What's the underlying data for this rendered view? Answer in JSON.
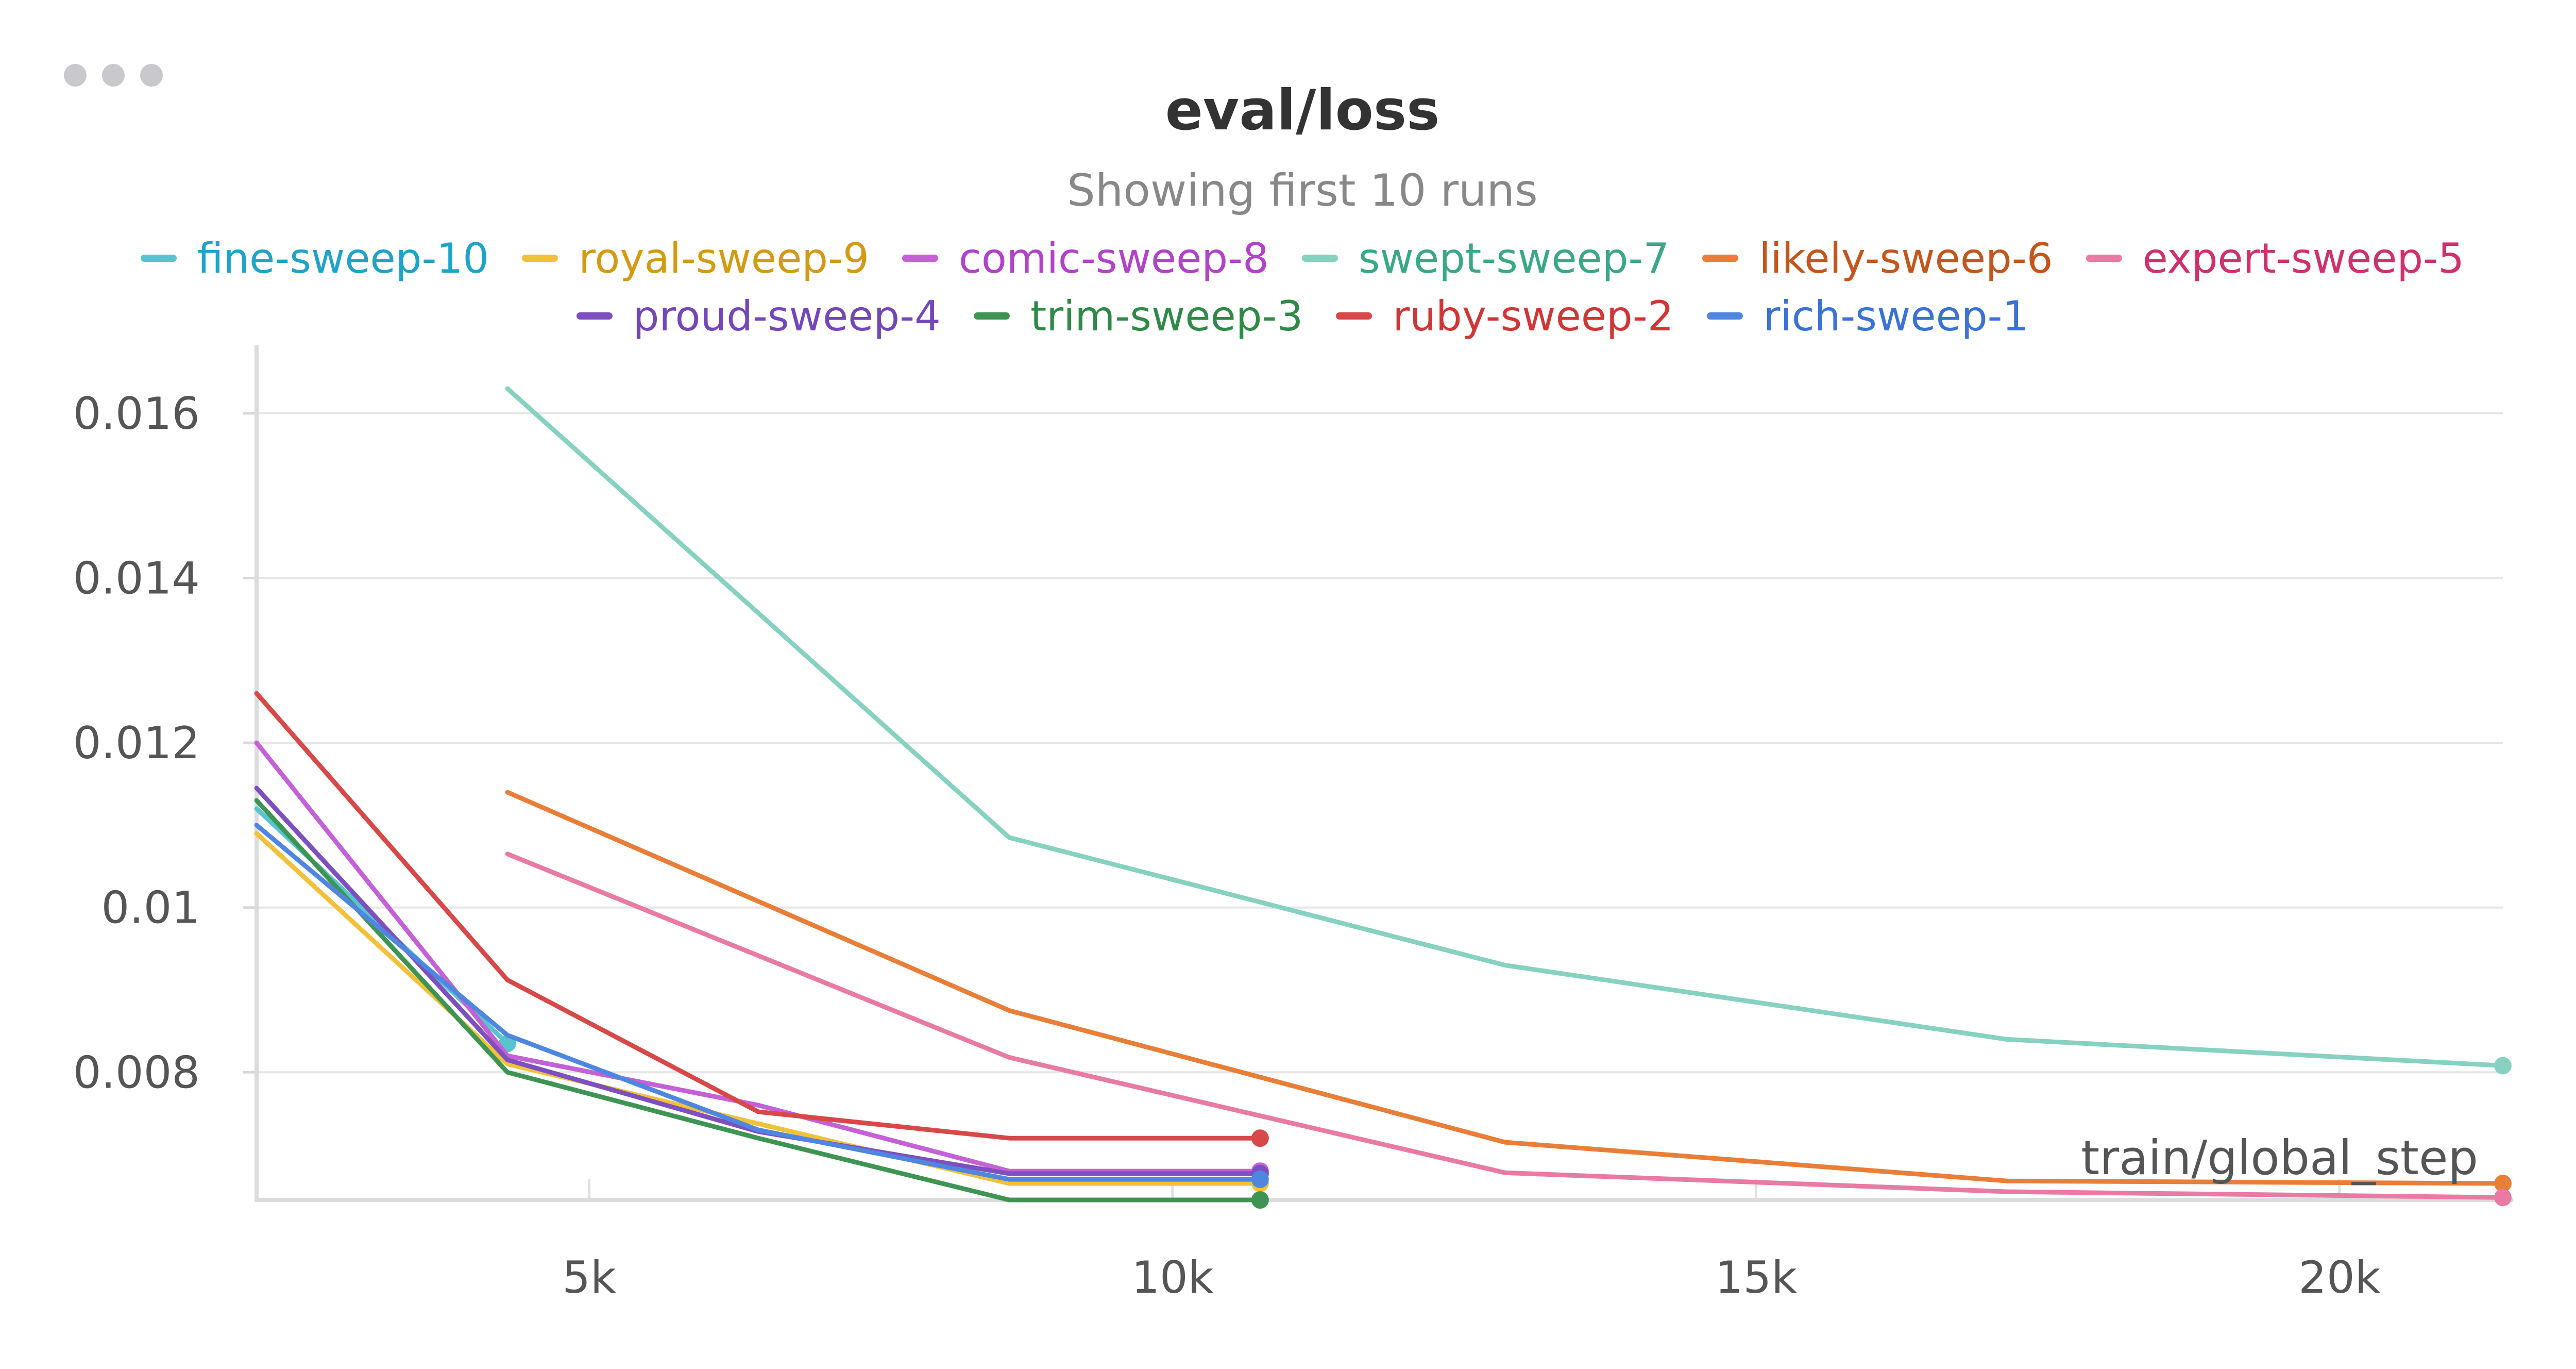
{
  "header": {
    "title": "eval/loss",
    "subtitle": "Showing first 10 runs"
  },
  "chart_data": {
    "type": "line",
    "title": "eval/loss",
    "subtitle": "Showing first 10 runs",
    "xlabel": "train/global_step",
    "ylabel": "",
    "xlim": [
      2150,
      21400
    ],
    "ylim": [
      0.00645,
      0.01645
    ],
    "x_ticks": [
      5000,
      10000,
      15000,
      20000
    ],
    "x_tick_labels": [
      "5k",
      "10k",
      "15k",
      "20k"
    ],
    "y_ticks": [
      0.008,
      0.01,
      0.012,
      0.014,
      0.016
    ],
    "y_tick_labels": [
      "0.008",
      "0.01",
      "0.012",
      "0.014",
      "0.016"
    ],
    "grid": true,
    "legend_position": "top",
    "series": [
      {
        "name": "fine-sweep-10",
        "color": "#56c5d0",
        "text_color": "#1ea3c9",
        "x": [
          2150,
          4300
        ],
        "y": [
          0.0112,
          0.00835
        ]
      },
      {
        "name": "royal-sweep-9",
        "color": "#f2c13a",
        "text_color": "#d39a12",
        "x": [
          2150,
          4300,
          8600,
          10750
        ],
        "y": [
          0.0109,
          0.0081,
          0.00665,
          0.00665
        ]
      },
      {
        "name": "comic-sweep-8",
        "color": "#c461d6",
        "text_color": "#b142c9",
        "x": [
          2150,
          4300,
          6450,
          8600,
          10750
        ],
        "y": [
          0.012,
          0.0082,
          0.0076,
          0.0068,
          0.0068
        ]
      },
      {
        "name": "swept-sweep-7",
        "color": "#86d1bf",
        "text_color": "#3aa888",
        "x": [
          4300,
          8600,
          12850,
          17150,
          21400
        ],
        "y": [
          0.0163,
          0.01085,
          0.0093,
          0.0084,
          0.00808
        ]
      },
      {
        "name": "likely-sweep-6",
        "color": "#e87e37",
        "text_color": "#c4561c",
        "x": [
          4300,
          8600,
          12850,
          17150,
          21400
        ],
        "y": [
          0.0114,
          0.00875,
          0.00715,
          0.00668,
          0.00665
        ]
      },
      {
        "name": "expert-sweep-5",
        "color": "#e87aa4",
        "text_color": "#d0306e",
        "x": [
          4300,
          8600,
          12850,
          17150,
          21400
        ],
        "y": [
          0.01065,
          0.00818,
          0.00678,
          0.00655,
          0.00648
        ]
      },
      {
        "name": "proud-sweep-4",
        "color": "#7d4fbf",
        "text_color": "#7447b8",
        "x": [
          2150,
          4300,
          6450,
          8600,
          10750
        ],
        "y": [
          0.01145,
          0.00815,
          0.00728,
          0.00677,
          0.00677
        ]
      },
      {
        "name": "trim-sweep-3",
        "color": "#3e9553",
        "text_color": "#2f8a47",
        "x": [
          2150,
          4300,
          6450,
          8600,
          10750
        ],
        "y": [
          0.0113,
          0.008,
          0.0072,
          0.00645,
          0.00645
        ]
      },
      {
        "name": "ruby-sweep-2",
        "color": "#d94848",
        "text_color": "#d13636",
        "x": [
          2150,
          4300,
          6450,
          8600,
          10750
        ],
        "y": [
          0.0126,
          0.00912,
          0.00752,
          0.0072,
          0.0072
        ]
      },
      {
        "name": "rich-sweep-1",
        "color": "#4f86e0",
        "text_color": "#3a72d6",
        "x": [
          2150,
          4300,
          6450,
          8600,
          10750
        ],
        "y": [
          0.011,
          0.00845,
          0.0073,
          0.0067,
          0.0067
        ]
      }
    ]
  }
}
